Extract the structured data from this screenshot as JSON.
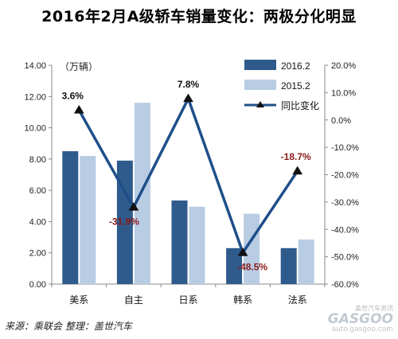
{
  "title": "2016年2月A级轿车销量变化：两极分化明显",
  "chart_data": {
    "type": "bar",
    "categories": [
      "美系",
      "自主",
      "日系",
      "韩系",
      "法系"
    ],
    "series": [
      {
        "name": "2016.2",
        "type": "bar",
        "axis": "left",
        "values": [
          8.5,
          7.9,
          5.35,
          2.3,
          2.3
        ],
        "color": "#2e5b8c"
      },
      {
        "name": "2015.2",
        "type": "bar",
        "axis": "left",
        "values": [
          8.2,
          11.6,
          4.95,
          4.5,
          2.85
        ],
        "color": "#b8cce4"
      },
      {
        "name": "同比变化",
        "type": "line",
        "axis": "right",
        "values": [
          3.6,
          -31.9,
          7.8,
          -48.5,
          -18.7
        ],
        "color": "#1f4f8a"
      }
    ],
    "data_labels": [
      "3.6%",
      "-31.9%",
      "7.8%",
      "-48.5%",
      "-18.7%"
    ],
    "unit_label": "（万辆）",
    "y_left": {
      "ylim": [
        0,
        14
      ],
      "ticks": [
        "0.00",
        "2.00",
        "4.00",
        "6.00",
        "8.00",
        "10.00",
        "12.00",
        "14.00"
      ]
    },
    "y_right": {
      "ylim": [
        -60,
        20
      ],
      "ticks": [
        "-60.0%",
        "-50.0%",
        "-40.0%",
        "-30.0%",
        "-20.0%",
        "-10.0%",
        "0.0%",
        "10.0%",
        "20.0%"
      ]
    },
    "legend_position": "top-right",
    "grid": false
  },
  "footer": {
    "source": "来源：乘联会  整理：盖世汽车"
  },
  "watermark": {
    "top": "盖世汽车资讯",
    "main": "GASGOO",
    "url": "auto.gasgoo.com"
  }
}
